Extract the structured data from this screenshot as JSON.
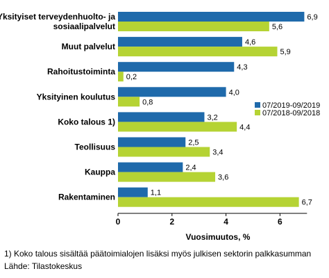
{
  "chart_data": {
    "type": "bar",
    "orientation": "horizontal",
    "title": "",
    "xlabel": "Vuosimuutos, %",
    "ylabel": "",
    "xlim": [
      0,
      7
    ],
    "xticks": [
      0,
      2,
      4,
      6
    ],
    "grid": false,
    "legend_position": "right",
    "categories": [
      [
        "Yksityiset terveydenhuolto- ja",
        "sosiaalipalvelut"
      ],
      [
        "Muut palvelut"
      ],
      [
        "Rahoitustoiminta"
      ],
      [
        "Yksityinen koulutus"
      ],
      [
        "Koko talous 1)"
      ],
      [
        "Teollisuus"
      ],
      [
        "Kauppa"
      ],
      [
        "Rakentaminen"
      ]
    ],
    "series": [
      {
        "name": "07/2019-09/2019",
        "color": "#1f6aab",
        "values": [
          6.9,
          4.6,
          4.3,
          4.0,
          3.2,
          2.5,
          2.4,
          1.1
        ],
        "labels": [
          "6,9",
          "4,6",
          "4,3",
          "4,0",
          "3,2",
          "2,5",
          "2,4",
          "1,1"
        ]
      },
      {
        "name": "07/2018-09/2018",
        "color": "#b5d334",
        "values": [
          5.6,
          5.9,
          0.2,
          0.8,
          4.4,
          3.4,
          3.6,
          6.7
        ],
        "labels": [
          "5,6",
          "5,9",
          "0,2",
          "0,8",
          "4,4",
          "3,4",
          "3,6",
          "6,7"
        ]
      }
    ]
  },
  "footnotes": {
    "note1": "1) Koko talous sisältää päätoimialojen lisäksi myös julkisen sektorin palkkasumman",
    "source": "Lähde: Tilastokeskus"
  }
}
